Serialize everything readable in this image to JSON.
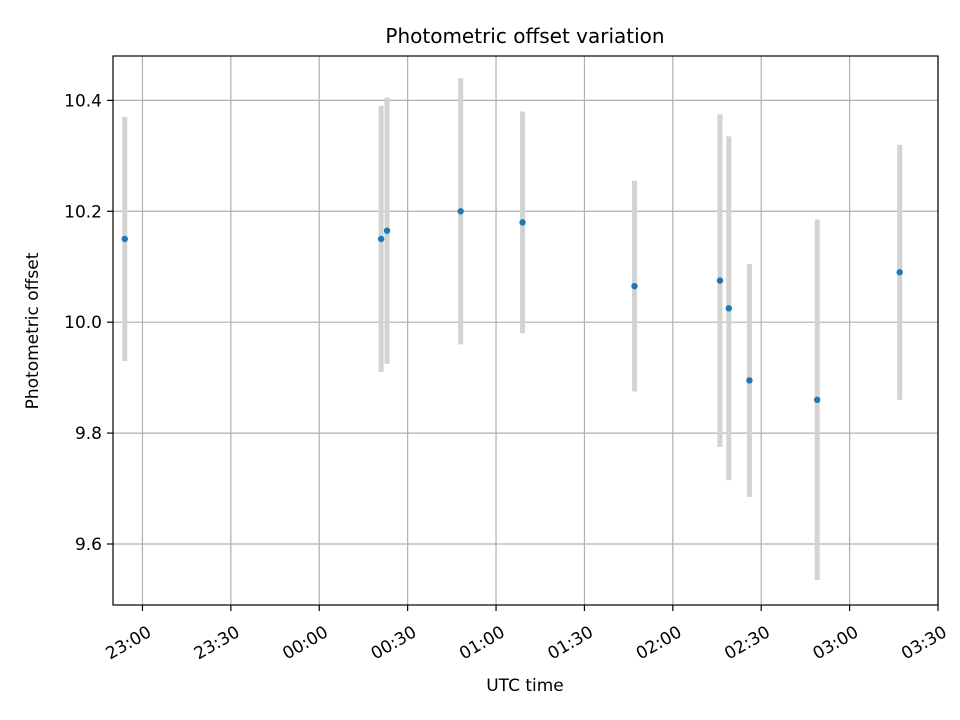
{
  "chart_data": {
    "type": "scatter",
    "title": "Photometric offset variation",
    "xlabel": "UTC time",
    "ylabel": "Photometric offset",
    "xlim": [
      "22:50",
      "03:30"
    ],
    "ylim": [
      9.49,
      10.48
    ],
    "grid": true,
    "x_ticks": [
      "23:00",
      "23:30",
      "00:00",
      "00:30",
      "01:00",
      "01:30",
      "02:00",
      "02:30",
      "03:00",
      "03:30"
    ],
    "y_ticks": [
      "9.6",
      "9.8",
      "10.0",
      "10.2",
      "10.4"
    ],
    "point_color": "#1f77b4",
    "errorbar_color": "#d3d3d3",
    "points": [
      {
        "time": "22:54",
        "y": 10.15,
        "err": 0.22
      },
      {
        "time": "00:21",
        "y": 10.15,
        "err": 0.24
      },
      {
        "time": "00:23",
        "y": 10.165,
        "err": 0.24
      },
      {
        "time": "00:48",
        "y": 10.2,
        "err": 0.24
      },
      {
        "time": "01:09",
        "y": 10.18,
        "err": 0.2
      },
      {
        "time": "01:47",
        "y": 10.065,
        "err": 0.19
      },
      {
        "time": "02:16",
        "y": 10.075,
        "err": 0.3
      },
      {
        "time": "02:19",
        "y": 10.025,
        "err": 0.31
      },
      {
        "time": "02:26",
        "y": 9.895,
        "err": 0.21
      },
      {
        "time": "02:49",
        "y": 9.86,
        "err": 0.325
      },
      {
        "time": "03:17",
        "y": 10.09,
        "err": 0.23
      }
    ]
  }
}
